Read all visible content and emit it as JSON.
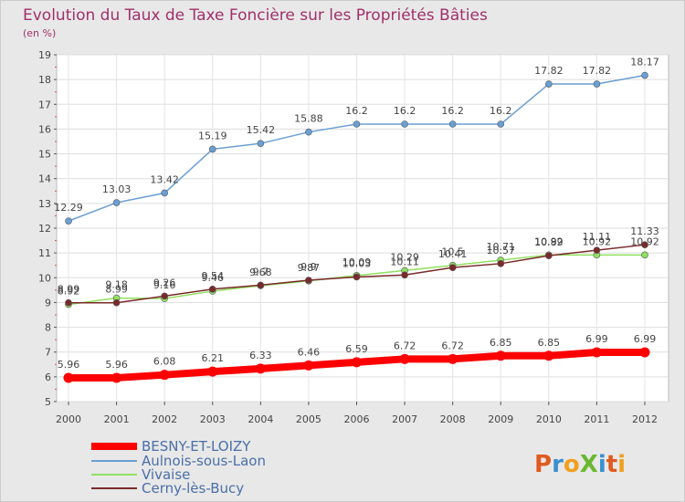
{
  "chart_data": {
    "type": "line",
    "title": "Evolution du Taux de Taxe Foncière sur les Propriétés Bâties",
    "unit_label": "(en %)",
    "x": [
      "2000",
      "2001",
      "2002",
      "2003",
      "2004",
      "2005",
      "2006",
      "2007",
      "2008",
      "2009",
      "2010",
      "2011",
      "2012"
    ],
    "ylim": [
      5,
      19
    ],
    "yticks": [
      5,
      6,
      7,
      8,
      9,
      10,
      11,
      12,
      13,
      14,
      15,
      16,
      17,
      18,
      19
    ],
    "grid": true,
    "legend_position": "bottom-left",
    "series": [
      {
        "name": "BESNY-ET-LOIZY",
        "color": "#ff0000",
        "values": [
          5.96,
          5.96,
          6.08,
          6.21,
          6.33,
          6.46,
          6.59,
          6.72,
          6.72,
          6.85,
          6.85,
          6.99,
          6.99
        ],
        "labels": [
          "5.96",
          "5.96",
          "6.08",
          "6.21",
          "6.33",
          "6.46",
          "6.59",
          "6.72",
          "6.72",
          "6.85",
          "6.85",
          "6.99",
          "6.99"
        ]
      },
      {
        "name": "Aulnois-sous-Laon",
        "color": "#6a9fd4",
        "values": [
          12.29,
          13.03,
          13.42,
          15.19,
          15.42,
          15.88,
          16.2,
          16.2,
          16.2,
          16.2,
          17.82,
          17.82,
          18.17
        ],
        "labels": [
          "12.29",
          "13.03",
          "13.42",
          "15.19",
          "15.42",
          "15.88",
          "16.2",
          "16.2",
          "16.2",
          "16.2",
          "17.82",
          "17.82",
          "18.17"
        ]
      },
      {
        "name": "Vivaise",
        "color": "#90e060",
        "values": [
          8.92,
          9.18,
          9.16,
          9.46,
          9.68,
          9.87,
          10.09,
          10.29,
          10.5,
          10.71,
          10.92,
          10.92,
          10.92
        ],
        "labels": [
          "8.92",
          "9.18",
          "9.16",
          "9.46",
          "9.68",
          "9.87",
          "10.09",
          "10.29",
          "10.5",
          "10.71",
          "10.92",
          "10.92",
          "10.92"
        ]
      },
      {
        "name": "Cerny-lès-Bucy",
        "color": "#7a2a2a",
        "values": [
          8.99,
          8.99,
          9.26,
          9.54,
          9.7,
          9.9,
          10.03,
          10.11,
          10.41,
          10.57,
          10.89,
          11.11,
          11.33
        ],
        "labels": [
          "8.99",
          "8.99",
          "9.26",
          "9.54",
          "9.7",
          "9.9",
          "10.03",
          "10.11",
          "10.41",
          "10.57",
          "10.89",
          "11.11",
          "11.33"
        ]
      }
    ]
  },
  "watermark": {
    "text": "ProXiti",
    "colors": [
      "#e05a20",
      "#3a8fd0",
      "#f0a020",
      "#6ab830",
      "#3a8fd0",
      "#e05a20",
      "#f0a020"
    ]
  }
}
